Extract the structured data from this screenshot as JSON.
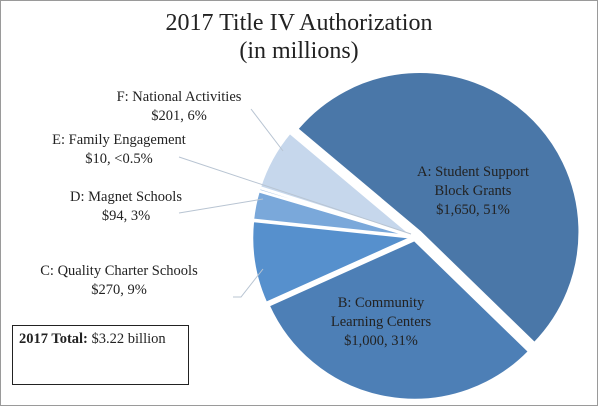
{
  "chart_data": {
    "type": "pie",
    "title": "2017 Title IV Authorization",
    "subtitle": "(in millions)",
    "categories": [
      "A: Student Support Block Grants",
      "B: Community Learning Centers",
      "C: Quality Charter Schools",
      "D: Magnet Schools",
      "E: Family Engagement",
      "F: National Activities"
    ],
    "values": [
      1650,
      1000,
      270,
      94,
      10,
      201
    ],
    "value_labels": [
      "$1,650, 51%",
      "$1,000, 31%",
      "$270, 9%",
      "$94, 3%",
      "$10, <0.5%",
      "$201, 6%"
    ],
    "colors": [
      "#4a77a8",
      "#4d7fb6",
      "#5690cd",
      "#7aa8da",
      "#a8c4e4",
      "#c6d7ec"
    ],
    "annotation": {
      "label": "2017 Total:",
      "text": "$3.22 billion"
    }
  }
}
